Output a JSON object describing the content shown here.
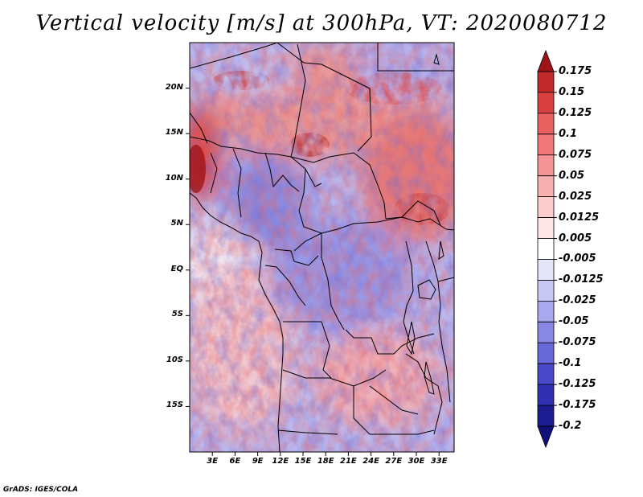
{
  "title": "Vertical velocity [m/s] at 300hPa, VT: 2020080712",
  "footer": "GrADS: IGES/COLA",
  "map": {
    "lon_range": [
      0,
      35
    ],
    "lat_range": [
      -20,
      25
    ],
    "lat_ticks": [
      {
        "label": "20N",
        "value": 20
      },
      {
        "label": "15N",
        "value": 15
      },
      {
        "label": "10N",
        "value": 10
      },
      {
        "label": "5N",
        "value": 5
      },
      {
        "label": "EQ",
        "value": 0
      },
      {
        "label": "5S",
        "value": -5
      },
      {
        "label": "10S",
        "value": -10
      },
      {
        "label": "15S",
        "value": -15
      }
    ],
    "lon_ticks": [
      {
        "label": "3E",
        "value": 3
      },
      {
        "label": "6E",
        "value": 6
      },
      {
        "label": "9E",
        "value": 9
      },
      {
        "label": "12E",
        "value": 12
      },
      {
        "label": "15E",
        "value": 15
      },
      {
        "label": "18E",
        "value": 18
      },
      {
        "label": "21E",
        "value": 21
      },
      {
        "label": "24E",
        "value": 24
      },
      {
        "label": "27E",
        "value": 27
      },
      {
        "label": "30E",
        "value": 30
      },
      {
        "label": "33E",
        "value": 33
      }
    ]
  },
  "colorbar": {
    "labels": [
      "0.175",
      "0.15",
      "0.125",
      "0.1",
      "0.075",
      "0.05",
      "0.025",
      "0.0125",
      "0.005",
      "-0.005",
      "-0.0125",
      "-0.025",
      "-0.05",
      "-0.075",
      "-0.1",
      "-0.125",
      "-0.175",
      "-0.2"
    ],
    "colors": [
      "#a01418",
      "#c02a2a",
      "#d84040",
      "#e86060",
      "#f07878",
      "#f49494",
      "#f8b0b0",
      "#fbcccc",
      "#fde6e6",
      "#ffffff",
      "#e6e6fb",
      "#c8c8f4",
      "#a8a8ee",
      "#8888e4",
      "#6868d8",
      "#4848c8",
      "#3030b0",
      "#1c1c90",
      "#10107a"
    ]
  },
  "chart_data": {
    "type": "heatmap",
    "title": "Vertical velocity [m/s] at 300hPa, VT: 2020080712",
    "variable": "Vertical velocity",
    "units": "m/s",
    "level": "300hPa",
    "valid_time": "2020080712",
    "x_range": [
      0,
      35
    ],
    "y_range": [
      -20,
      25
    ],
    "levels": [
      -0.2,
      -0.175,
      -0.125,
      -0.1,
      -0.075,
      -0.05,
      -0.025,
      -0.0125,
      -0.005,
      0.005,
      0.0125,
      0.025,
      0.05,
      0.075,
      0.1,
      0.125,
      0.15,
      0.175
    ]
  }
}
